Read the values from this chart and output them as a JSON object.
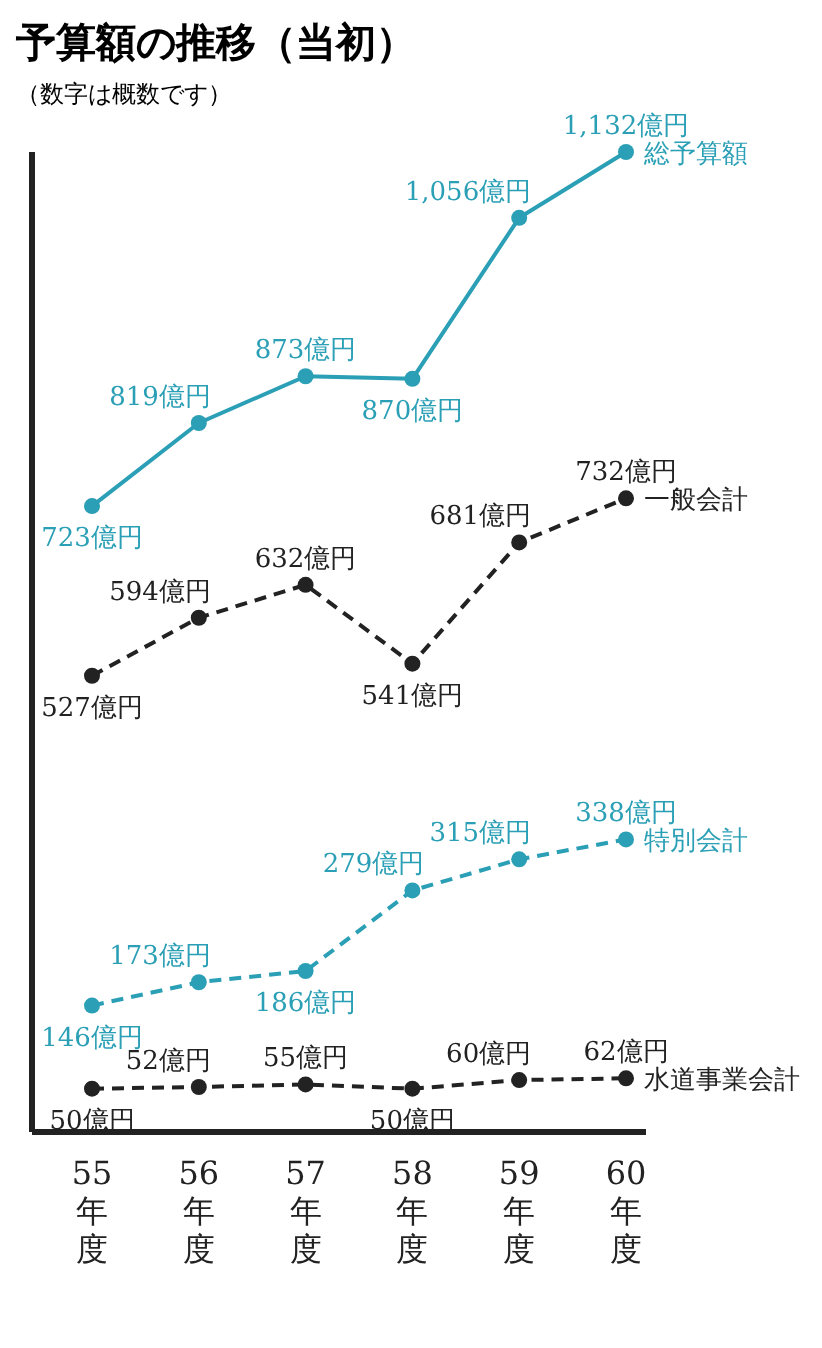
{
  "chart_data": {
    "type": "line",
    "title": "予算額の推移（当初）",
    "subtitle": "（数字は概数です）",
    "categories": [
      "55年度",
      "56年度",
      "57年度",
      "58年度",
      "59年度",
      "60年度"
    ],
    "series": [
      {
        "name": "総予算額",
        "color": "#2a9fb5",
        "line_style": "solid",
        "values": [
          723,
          819,
          873,
          870,
          1056,
          1132
        ],
        "value_labels": [
          "723億円",
          "819億円",
          "873億円",
          "870億円",
          "1,056億円",
          "1,132億円"
        ]
      },
      {
        "name": "一般会計",
        "color": "#222222",
        "line_style": "dashed",
        "values": [
          527,
          594,
          632,
          541,
          681,
          732
        ],
        "value_labels": [
          "527億円",
          "594億円",
          "632億円",
          "541億円",
          "681億円",
          "732億円"
        ]
      },
      {
        "name": "特別会計",
        "color": "#2a9fb5",
        "line_style": "dashed",
        "values": [
          146,
          173,
          186,
          279,
          315,
          338
        ],
        "value_labels": [
          "146億円",
          "173億円",
          "186億円",
          "279億円",
          "315億円",
          "338億円"
        ]
      },
      {
        "name": "水道事業会計",
        "color": "#222222",
        "line_style": "dashed",
        "values": [
          50,
          52,
          55,
          50,
          60,
          62
        ],
        "value_labels": [
          "50億円",
          "52億円",
          "55億円",
          "50億円",
          "60億円",
          "62億円"
        ]
      }
    ],
    "marker": "circle",
    "grid": false,
    "legend": false
  }
}
